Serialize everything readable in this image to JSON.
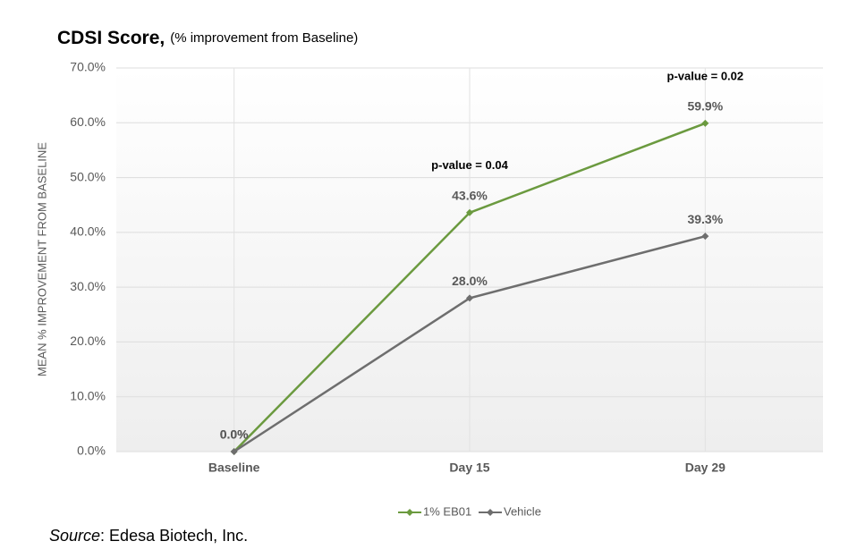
{
  "chart_data": {
    "type": "line",
    "title": "CDSI Score,",
    "subtitle": "(% improvement from Baseline)",
    "y_label": "MEAN % IMPROVEMENT FROM BASELINE",
    "categories": [
      "Baseline",
      "Day 15",
      "Day 29"
    ],
    "series": [
      {
        "name": "1% EB01",
        "color": "#6b9a3f",
        "values": [
          0,
          43.6,
          59.9
        ],
        "value_labels": [
          "0.0%",
          "43.6%",
          "59.9%"
        ]
      },
      {
        "name": "Vehicle",
        "color": "#6e6e6e",
        "values": [
          0,
          28.0,
          39.3
        ],
        "value_labels": [
          "0.0%",
          "28.0%",
          "39.3%"
        ]
      }
    ],
    "ylim": [
      0,
      70
    ],
    "yticks": [
      {
        "value": 0,
        "label": "0.0%"
      },
      {
        "value": 10,
        "label": "10.0%"
      },
      {
        "value": 20,
        "label": "20.0%"
      },
      {
        "value": 30,
        "label": "30.0%"
      },
      {
        "value": 40,
        "label": "40.0%"
      },
      {
        "value": 50,
        "label": "50.0%"
      },
      {
        "value": 60,
        "label": "60.0%"
      },
      {
        "value": 70,
        "label": "70.0%"
      }
    ],
    "grid": true,
    "legend": "bottom",
    "annotations": [
      {
        "text": "p-value = 0.04",
        "category": "Day 15"
      },
      {
        "text": "p-value = 0.02",
        "category": "Day 29"
      }
    ],
    "source_label": "Source",
    "source_text": ": Edesa Biotech, Inc."
  }
}
